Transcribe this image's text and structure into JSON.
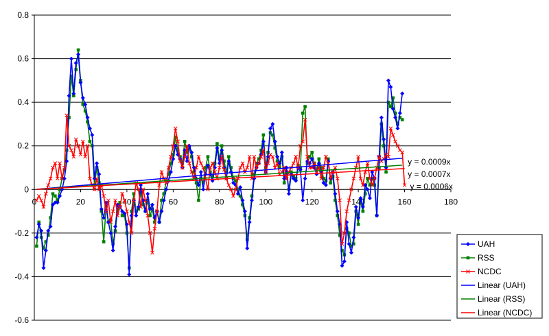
{
  "chart_data": {
    "type": "line",
    "title": "",
    "xlabel": "",
    "ylabel": "",
    "xlim": [
      0,
      180
    ],
    "ylim": [
      -0.6,
      0.8
    ],
    "x_ticks": [
      "0",
      "20",
      "40",
      "60",
      "80",
      "100",
      "120",
      "140",
      "160",
      "180"
    ],
    "y_ticks": [
      "-0.6",
      "-0.4",
      "-0.2",
      "0",
      "0.2",
      "0.4",
      "0.6",
      "0.8"
    ],
    "grid": "horizontal",
    "legend_position": "bottom-right",
    "series": [
      {
        "name": "UAH",
        "color": "#0000ff",
        "marker": "diamond",
        "values": [
          -0.22,
          -0.16,
          -0.19,
          -0.36,
          -0.28,
          -0.19,
          -0.17,
          -0.07,
          -0.06,
          -0.06,
          -0.03,
          0.0,
          0.05,
          0.13,
          0.43,
          0.6,
          0.44,
          0.58,
          0.62,
          0.49,
          0.42,
          0.39,
          0.33,
          0.28,
          0.25,
          0.05,
          0.12,
          0.07,
          -0.09,
          -0.13,
          -0.06,
          -0.15,
          -0.2,
          -0.28,
          -0.17,
          -0.07,
          -0.08,
          -0.1,
          -0.11,
          -0.16,
          -0.39,
          -0.12,
          -0.05,
          -0.12,
          -0.08,
          0.02,
          -0.05,
          -0.1,
          -0.02,
          -0.09,
          -0.07,
          -0.13,
          -0.1,
          -0.15,
          -0.1,
          -0.05,
          0.0,
          0.04,
          0.08,
          0.14,
          0.2,
          0.16,
          0.14,
          0.1,
          0.18,
          0.13,
          0.2,
          0.17,
          0.1,
          0.05,
          0.02,
          0.08,
          0.0,
          0.07,
          0.11,
          0.07,
          0.04,
          0.1,
          0.19,
          0.12,
          0.18,
          0.1,
          0.05,
          0.13,
          0.08,
          0.03,
          0.02,
          -0.02,
          0.01,
          -0.05,
          -0.1,
          -0.27,
          -0.15,
          -0.05,
          0.05,
          0.1,
          0.12,
          0.16,
          0.22,
          0.08,
          0.15,
          0.28,
          0.3,
          0.22,
          0.15,
          0.12,
          0.17,
          0.05,
          0.1,
          -0.02,
          0.07,
          0.05,
          0.04,
          0.1,
          0.09,
          -0.05,
          0.05,
          0.13,
          0.12,
          0.14,
          0.1,
          0.07,
          0.12,
          0.08,
          0.03,
          0.02,
          0.13,
          0.05,
          0.08,
          -0.02,
          -0.1,
          -0.16,
          -0.35,
          -0.33,
          -0.15,
          -0.25,
          -0.29,
          -0.22,
          -0.08,
          -0.13,
          -0.04,
          -0.08,
          0.02,
          0.0,
          -0.04,
          0.08,
          0.05,
          -0.12,
          0.15,
          0.33,
          0.23,
          0.1,
          0.5,
          0.47,
          0.37,
          0.33,
          0.28,
          0.35,
          0.44
        ]
      },
      {
        "name": "RSS",
        "color": "#008000",
        "marker": "square",
        "values": [
          -0.26,
          -0.15,
          -0.22,
          -0.27,
          -0.24,
          -0.21,
          -0.13,
          -0.02,
          -0.03,
          -0.05,
          0.0,
          0.05,
          0.09,
          0.18,
          0.33,
          0.52,
          0.43,
          0.55,
          0.64,
          0.5,
          0.39,
          0.36,
          0.31,
          0.22,
          0.2,
          0.02,
          0.1,
          0.03,
          -0.1,
          -0.24,
          -0.08,
          -0.15,
          -0.14,
          -0.25,
          -0.19,
          -0.1,
          -0.06,
          -0.12,
          -0.12,
          -0.2,
          -0.36,
          -0.1,
          -0.02,
          -0.1,
          -0.09,
          -0.01,
          -0.07,
          -0.1,
          -0.05,
          -0.12,
          -0.09,
          -0.15,
          -0.1,
          -0.15,
          -0.05,
          -0.02,
          0.04,
          0.07,
          0.12,
          0.16,
          0.24,
          0.18,
          0.15,
          0.12,
          0.22,
          0.17,
          0.19,
          0.15,
          0.08,
          0.03,
          -0.05,
          0.05,
          0.03,
          0.1,
          0.15,
          0.08,
          0.06,
          0.12,
          0.21,
          0.14,
          0.2,
          0.13,
          0.08,
          0.15,
          0.1,
          0.05,
          0.04,
          0.0,
          -0.03,
          -0.07,
          -0.12,
          -0.23,
          -0.13,
          -0.03,
          0.07,
          0.12,
          0.14,
          0.18,
          0.25,
          0.1,
          0.17,
          0.26,
          0.25,
          0.19,
          0.13,
          0.1,
          0.15,
          0.03,
          0.08,
          0.0,
          0.08,
          0.06,
          0.05,
          0.11,
          0.1,
          0.35,
          0.38,
          0.12,
          0.15,
          0.17,
          0.12,
          0.09,
          0.14,
          0.1,
          0.05,
          0.04,
          0.14,
          0.03,
          0.06,
          -0.05,
          -0.12,
          -0.21,
          -0.28,
          -0.3,
          -0.18,
          -0.2,
          -0.26,
          -0.25,
          -0.1,
          -0.16,
          -0.05,
          -0.1,
          -0.02,
          0.05,
          0.02,
          0.05,
          0.02,
          -0.12,
          0.1,
          0.3,
          0.2,
          0.08,
          0.4,
          0.38,
          0.42,
          0.35,
          0.3,
          0.33,
          0.32
        ]
      },
      {
        "name": "NCDC",
        "color": "#ff0000",
        "marker": "x",
        "values": [
          -0.05,
          -0.03,
          -0.05,
          -0.08,
          -0.02,
          0.02,
          0.05,
          0.1,
          0.12,
          0.05,
          0.12,
          0.05,
          0.1,
          0.34,
          0.2,
          0.18,
          0.15,
          0.23,
          0.2,
          0.16,
          0.22,
          0.15,
          0.2,
          0.05,
          0.02,
          0.0,
          0.05,
          0.0,
          0.02,
          -0.03,
          -0.1,
          -0.05,
          -0.15,
          -0.1,
          -0.05,
          -0.12,
          -0.08,
          -0.02,
          -0.05,
          -0.1,
          -0.15,
          -0.2,
          -0.05,
          0.03,
          0.0,
          -0.08,
          0.0,
          -0.05,
          -0.12,
          -0.2,
          -0.29,
          -0.18,
          -0.1,
          0.02,
          0.08,
          0.05,
          0.03,
          0.1,
          0.15,
          0.2,
          0.28,
          0.22,
          0.13,
          0.1,
          0.15,
          0.2,
          0.12,
          0.08,
          0.05,
          0.1,
          0.15,
          0.12,
          0.1,
          0.05,
          0.0,
          0.1,
          0.12,
          0.08,
          0.05,
          0.1,
          0.15,
          0.09,
          0.05,
          0.02,
          0.0,
          -0.03,
          0.0,
          0.05,
          0.1,
          0.12,
          0.08,
          0.1,
          0.15,
          0.05,
          0.15,
          0.1,
          0.12,
          0.15,
          0.18,
          0.08,
          0.12,
          0.16,
          0.15,
          0.1,
          0.12,
          0.07,
          0.08,
          0.1,
          0.05,
          0.08,
          0.1,
          0.12,
          0.15,
          0.1,
          0.2,
          0.22,
          0.32,
          0.15,
          0.1,
          0.1,
          0.12,
          0.08,
          0.1,
          0.05,
          0.1,
          0.15,
          0.12,
          0.05,
          0.08,
          0.1,
          0.05,
          -0.05,
          -0.25,
          -0.2,
          -0.1,
          -0.05,
          0.0,
          0.05,
          0.1,
          0.15,
          0.05,
          0.02,
          0.08,
          0.12,
          0.05,
          0.02,
          0.05,
          0.1,
          0.15,
          0.13,
          0.14,
          0.16,
          0.15,
          0.28,
          0.25,
          0.22,
          0.2,
          0.18,
          0.17,
          0.02
        ]
      },
      {
        "name": "Linear (UAH)",
        "color": "#0000ff",
        "trend_for": "UAH",
        "slope": 0.0009,
        "equation": "y = 0.0009x"
      },
      {
        "name": "Linear (RSS)",
        "color": "#008000",
        "trend_for": "RSS",
        "slope": 0.0007,
        "equation": "y = 0.0007x"
      },
      {
        "name": "Linear (NCDC)",
        "color": "#ff0000",
        "trend_for": "NCDC",
        "slope": 0.0006,
        "equation": "y = 0.0006x"
      }
    ]
  }
}
